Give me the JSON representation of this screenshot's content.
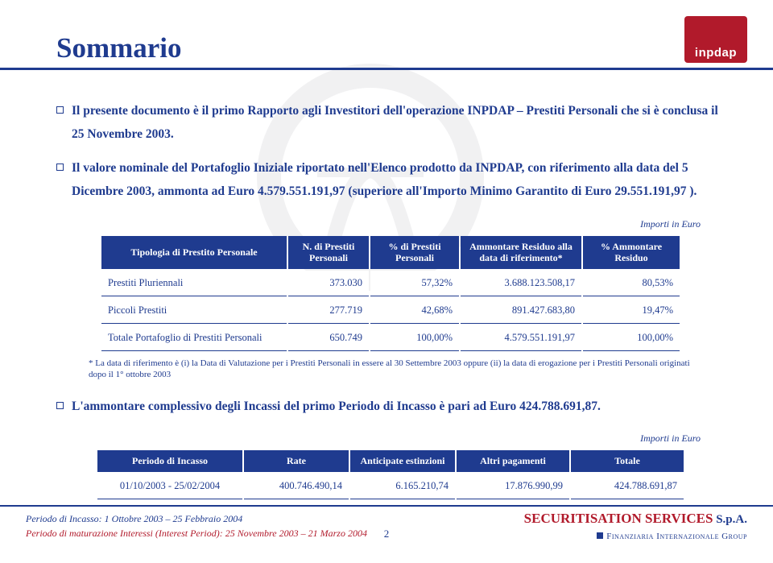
{
  "logo_text": "inpdap",
  "title": "Sommario",
  "bullets": [
    "Il presente documento è il primo Rapporto agli Investitori dell'operazione INPDAP – Prestiti Personali che si è conclusa il 25 Novembre 2003.",
    "Il valore nominale del Portafoglio Iniziale riportato nell'Elenco prodotto da INPDAP, con riferimento alla data del 5 Dicembre 2003, ammonta ad Euro 4.579.551.191,97 (superiore all'Importo Minimo Garantito di Euro 29.551.191,97 ).",
    "L'ammontare complessivo degli Incassi del primo Periodo di Incasso è pari ad Euro 424.788.691,87."
  ],
  "euro_caption": "Importi in Euro",
  "table1": {
    "headers": [
      "Tipologia di Prestito Personale",
      "N. di Prestiti Personali",
      "% di Prestiti Personali",
      "Ammontare Residuo alla data di riferimento*",
      "% Ammontare Residuo"
    ],
    "rows": [
      [
        "Prestiti Pluriennali",
        "373.030",
        "57,32%",
        "3.688.123.508,17",
        "80,53%"
      ],
      [
        "Piccoli Prestiti",
        "277.719",
        "42,68%",
        "891.427.683,80",
        "19,47%"
      ],
      [
        "Totale Portafoglio di Prestiti Personali",
        "650.749",
        "100,00%",
        "4.579.551.191,97",
        "100,00%"
      ]
    ]
  },
  "footnote": "* La data di riferimento è (i) la Data di Valutazione per i Prestiti Personali in essere al 30 Settembre 2003 oppure (ii) la data di erogazione per i Prestiti Personali originati dopo il 1° ottobre 2003",
  "table2": {
    "headers": [
      "Periodo di Incasso",
      "Rate",
      "Anticipate estinzioni",
      "Altri pagamenti",
      "Totale"
    ],
    "rows": [
      [
        "01/10/2003 - 25/02/2004",
        "400.746.490,14",
        "6.165.210,74",
        "17.876.990,99",
        "424.788.691,87"
      ]
    ]
  },
  "footer": {
    "line1": "Periodo di Incasso: 1 Ottobre 2003 – 25 Febbraio 2004",
    "line2": "Periodo di maturazione Interessi  (Interest Period): 25 Novembre 2003 – 21 Marzo 2004",
    "page": "2",
    "brand_main": "SECURITISATION SERVICES",
    "brand_spa": " S.p.A.",
    "brand_sub": "Finanziaria Internazionale Group"
  },
  "colors": {
    "blue": "#1f3b8f",
    "red": "#b11a2b"
  }
}
